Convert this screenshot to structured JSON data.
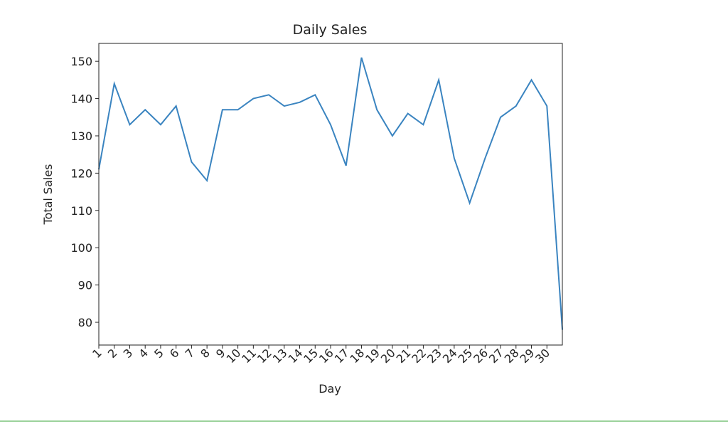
{
  "chart_data": {
    "type": "line",
    "title": "Daily Sales",
    "x_label": "Day",
    "y_label": "Total Sales",
    "x": [
      1,
      2,
      3,
      4,
      5,
      6,
      7,
      8,
      9,
      10,
      11,
      12,
      13,
      14,
      15,
      16,
      17,
      18,
      19,
      20,
      21,
      22,
      23,
      24,
      25,
      26,
      27,
      28,
      29,
      30,
      31
    ],
    "series": [
      {
        "name": "Total Sales",
        "color": "#3a84c0",
        "values": [
          121,
          144,
          133,
          137,
          133,
          138,
          123,
          118,
          137,
          137,
          140,
          141,
          138,
          139,
          141,
          133,
          122,
          151,
          137,
          130,
          136,
          133,
          145,
          124,
          112,
          124,
          135,
          138,
          145,
          138,
          78
        ]
      }
    ],
    "xlim": [
      1,
      31
    ],
    "xticks": [
      1,
      2,
      3,
      4,
      5,
      6,
      7,
      8,
      9,
      10,
      11,
      12,
      13,
      14,
      15,
      16,
      17,
      18,
      19,
      20,
      21,
      22,
      23,
      24,
      25,
      26,
      27,
      28,
      29,
      30
    ],
    "ylim": [
      73.9,
      154.8
    ],
    "yticks": [
      80,
      90,
      100,
      110,
      120,
      130,
      140,
      150
    ]
  }
}
